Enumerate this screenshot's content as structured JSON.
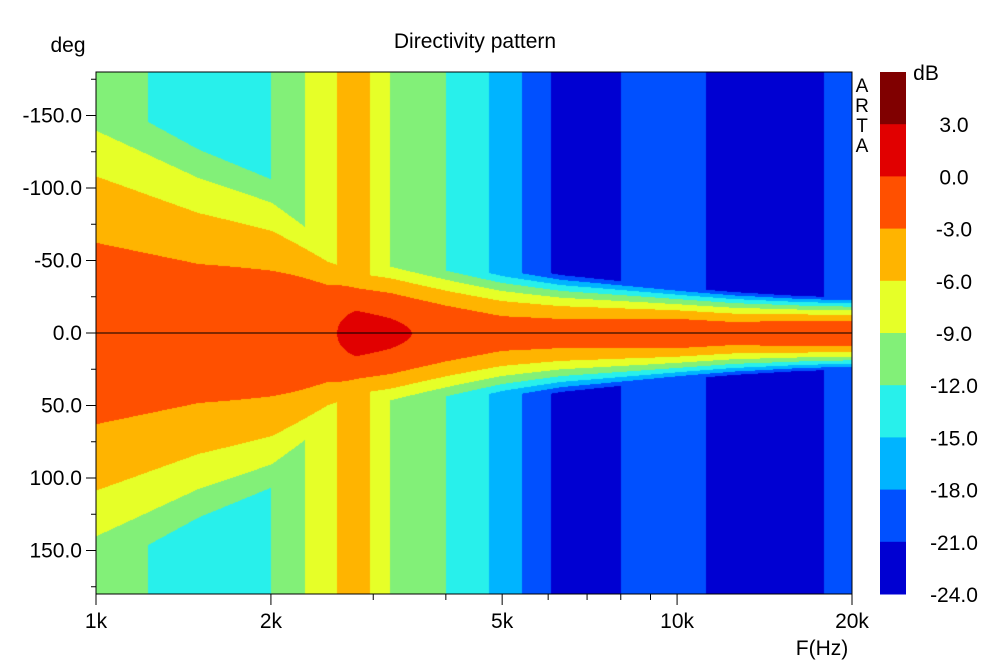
{
  "chart_data": {
    "type": "heatmap",
    "title": "Directivity pattern",
    "xlabel": "F(Hz)",
    "ylabel": "deg",
    "x_scale": "log",
    "xlim": [
      1000,
      20000
    ],
    "ylim": [
      -180,
      180
    ],
    "x_ticks": [
      {
        "value": 1000,
        "label": "1k"
      },
      {
        "value": 2000,
        "label": "2k"
      },
      {
        "value": 5000,
        "label": "5k"
      },
      {
        "value": 10000,
        "label": "10k"
      },
      {
        "value": 20000,
        "label": "20k"
      }
    ],
    "y_ticks": [
      {
        "value": -150,
        "label": "-150.0"
      },
      {
        "value": -100,
        "label": "-100.0"
      },
      {
        "value": -50,
        "label": "-50.0"
      },
      {
        "value": 0,
        "label": "0.0"
      },
      {
        "value": 50,
        "label": "50.0"
      },
      {
        "value": 100,
        "label": "100.0"
      },
      {
        "value": 150,
        "label": "150.0"
      }
    ],
    "colorbar": {
      "unit": "dB",
      "ticks": [
        "3.0",
        "0.0",
        "-3.0",
        "-6.0",
        "-9.0",
        "-12.0",
        "-15.0",
        "-18.0",
        "-21.0",
        "-24.0"
      ],
      "levels": [
        {
          "min": 3,
          "max": 6,
          "color": "#800000"
        },
        {
          "min": 0,
          "max": 3,
          "color": "#e10000"
        },
        {
          "min": -3,
          "max": 0,
          "color": "#ff5000"
        },
        {
          "min": -6,
          "max": -3,
          "color": "#ffb400"
        },
        {
          "min": -9,
          "max": -6,
          "color": "#e6ff28"
        },
        {
          "min": -12,
          "max": -9,
          "color": "#82f078"
        },
        {
          "min": -15,
          "max": -12,
          "color": "#28f0eb"
        },
        {
          "min": -18,
          "max": -15,
          "color": "#00b4ff"
        },
        {
          "min": -21,
          "max": -18,
          "color": "#0050ff"
        },
        {
          "min": -24,
          "max": -21,
          "color": "#0000d2"
        }
      ]
    },
    "profile": {
      "frequencies_hz": [
        1000,
        1500,
        2000,
        2500,
        2800,
        3200,
        4000,
        5000,
        6300,
        8000,
        10000,
        12500,
        16000,
        20000
      ],
      "on_axis_db": [
        -1.5,
        -1.5,
        -1.2,
        -0.5,
        1.0,
        0.5,
        -0.8,
        -1.8,
        -1.8,
        -1.5,
        -1.0,
        -1.5,
        -0.8,
        -0.5
      ],
      "beamwidth_deg": [
        150,
        115,
        95,
        62,
        46,
        44,
        38,
        32,
        27,
        24,
        21,
        19,
        17,
        16
      ],
      "rear_floor_db": [
        -11,
        -13,
        -12,
        -7,
        -4,
        -9,
        -12,
        -16,
        -22,
        -21,
        -20,
        -22,
        -22,
        -20
      ]
    }
  },
  "watermark": [
    "A",
    "R",
    "T",
    "A"
  ]
}
